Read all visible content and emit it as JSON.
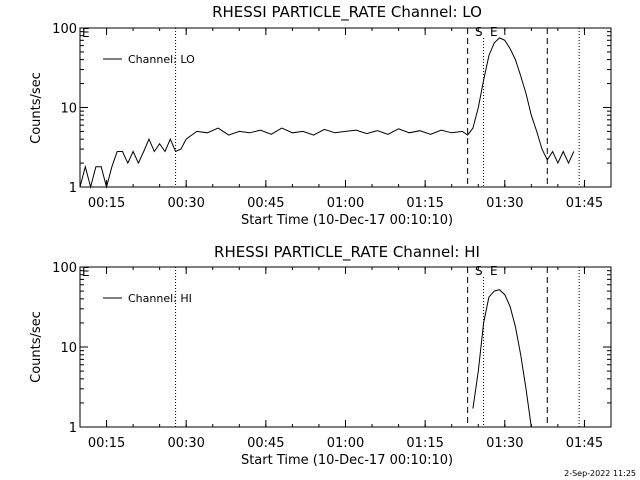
{
  "footer": {
    "date": "2-Sep-2022 11:25"
  },
  "chart_data": [
    {
      "type": "line",
      "title": "RHESSI PARTICLE_RATE Channel: LO",
      "xlabel": "Start Time (10-Dec-17 00:10:10)",
      "ylabel": "Counts/sec",
      "yscale": "log",
      "ylim": [
        1,
        100
      ],
      "xlim": [
        "00:10",
        "01:50"
      ],
      "xticks": [
        "00:15",
        "00:30",
        "00:45",
        "01:00",
        "01:15",
        "01:30",
        "01:45"
      ],
      "yticks": [
        "1",
        "10",
        "100"
      ],
      "legend": {
        "label": "Channel: LO",
        "position": "top-left"
      },
      "markers": {
        "corner_label": "E",
        "start_label": "S",
        "end_label": "E"
      },
      "dotted_lines": [
        "00:28",
        "01:44"
      ],
      "dashed_lines": [
        "01:23",
        "01:38"
      ],
      "dotted_inner": "01:26",
      "series": [
        {
          "x": [
            "00:10",
            "00:11",
            "00:12",
            "00:13",
            "00:14",
            "00:15",
            "00:16",
            "00:17",
            "00:18",
            "00:19",
            "00:20",
            "00:21",
            "00:22",
            "00:23",
            "00:24",
            "00:25",
            "00:26",
            "00:27",
            "00:28",
            "00:29",
            "00:30",
            "00:32",
            "00:34",
            "00:36",
            "00:38",
            "00:40",
            "00:42",
            "00:44",
            "00:46",
            "00:48",
            "00:50",
            "00:52",
            "00:54",
            "00:56",
            "00:58",
            "01:00",
            "01:02",
            "01:04",
            "01:06",
            "01:08",
            "01:10",
            "01:12",
            "01:14",
            "01:16",
            "01:18",
            "01:20",
            "01:22",
            "01:23",
            "01:24",
            "01:25",
            "01:26",
            "01:27",
            "01:28",
            "01:29",
            "01:30",
            "01:31",
            "01:32",
            "01:33",
            "01:34",
            "01:35",
            "01:36",
            "01:37",
            "01:38",
            "01:39",
            "01:40",
            "01:41",
            "01:42",
            "01:43"
          ],
          "values": [
            1,
            1.8,
            1,
            1.8,
            1.8,
            1,
            1.8,
            2.8,
            2.8,
            2,
            2.8,
            2,
            2.8,
            4,
            2.8,
            3.5,
            2.8,
            4,
            2.8,
            3,
            4,
            5,
            4.8,
            5.5,
            4.5,
            5,
            4.8,
            5.2,
            4.6,
            5.5,
            4.8,
            5,
            4.5,
            5.3,
            4.8,
            5,
            5.2,
            4.7,
            5.1,
            4.6,
            5.4,
            4.8,
            5.1,
            4.6,
            5.2,
            4.8,
            5,
            4.5,
            5.5,
            10,
            22,
            45,
            65,
            75,
            70,
            55,
            40,
            25,
            15,
            8,
            5,
            3,
            2.2,
            2.8,
            2,
            2.8,
            2,
            2.8
          ]
        }
      ]
    },
    {
      "type": "line",
      "title": "RHESSI PARTICLE_RATE Channel: HI",
      "xlabel": "Start Time (10-Dec-17 00:10:10)",
      "ylabel": "Counts/sec",
      "yscale": "log",
      "ylim": [
        1,
        100
      ],
      "xlim": [
        "00:10",
        "01:50"
      ],
      "xticks": [
        "00:15",
        "00:30",
        "00:45",
        "01:00",
        "01:15",
        "01:30",
        "01:45"
      ],
      "yticks": [
        "1",
        "10",
        "100"
      ],
      "legend": {
        "label": "Channel: HI",
        "position": "top-left"
      },
      "markers": {
        "corner_label": "E",
        "start_label": "S",
        "end_label": "E"
      },
      "dotted_lines": [
        "00:28",
        "01:44"
      ],
      "dashed_lines": [
        "01:23",
        "01:38"
      ],
      "dotted_inner": "01:26",
      "series": [
        {
          "x": [
            "01:24",
            "01:25",
            "01:26",
            "01:27",
            "01:28",
            "01:29",
            "01:30",
            "01:31",
            "01:32",
            "01:33",
            "01:34",
            "01:35"
          ],
          "values": [
            1.7,
            5,
            20,
            42,
            50,
            52,
            45,
            32,
            18,
            8,
            3,
            1
          ]
        }
      ]
    }
  ]
}
